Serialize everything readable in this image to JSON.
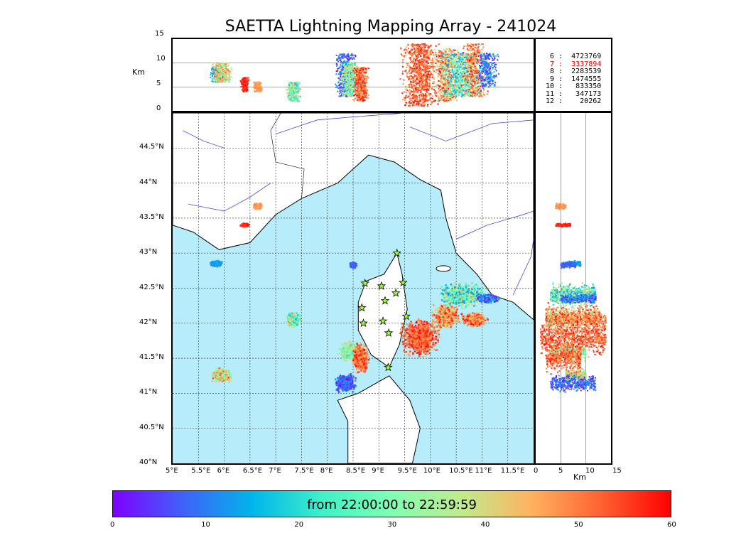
{
  "title": "SAETTA Lightning Mapping Array - 241024",
  "chart_data": {
    "type": "scatter",
    "title": "SAETTA Lightning Mapping Array - 241024",
    "map": {
      "lon_range": [
        5,
        12
      ],
      "lat_range": [
        40,
        45
      ],
      "x_ticks": [
        "5°E",
        "5.5°E",
        "6°E",
        "6.5°E",
        "7°E",
        "7.5°E",
        "8°E",
        "8.5°E",
        "9°E",
        "9.5°E",
        "10°E",
        "10.5°E",
        "11°E",
        "11.5°E"
      ],
      "y_ticks": [
        "40°N",
        "40.5°N",
        "41°N",
        "41.5°N",
        "42°N",
        "42.5°N",
        "43°N",
        "43.5°N",
        "44°N",
        "44.5°N"
      ],
      "grid": true
    },
    "altitude_top_panel": {
      "ylabel": "Km",
      "ylim": [
        0,
        15
      ],
      "y_ticks": [
        "0",
        "5",
        "10",
        "15"
      ]
    },
    "altitude_side_panel": {
      "xlabel": "Km",
      "xlim": [
        0,
        15
      ],
      "x_ticks": [
        "0",
        "5",
        "10",
        "15"
      ]
    },
    "station_counts": [
      {
        "stations": "6",
        "count": "4723769",
        "color": "#000000"
      },
      {
        "stations": "7",
        "count": "3337894",
        "color": "#ff0000"
      },
      {
        "stations": "8",
        "count": "2283539",
        "color": "#000000"
      },
      {
        "stations": "9",
        "count": "1474555",
        "color": "#000000"
      },
      {
        "stations": "10",
        "count": "833350",
        "color": "#000000"
      },
      {
        "stations": "11",
        "count": "347173",
        "color": "#000000"
      },
      {
        "stations": "12",
        "count": "20262",
        "color": "#000000"
      }
    ],
    "clusters": [
      {
        "lon": 5.85,
        "lat": 42.85,
        "rx": 0.13,
        "ry": 0.05,
        "t": [
          10,
          15
        ],
        "alt": [
          6,
          9
        ]
      },
      {
        "lon": 6.4,
        "lat": 43.4,
        "rx": 0.1,
        "ry": 0.03,
        "t": [
          55,
          60
        ],
        "alt": [
          4,
          7
        ]
      },
      {
        "lon": 6.65,
        "lat": 43.67,
        "rx": 0.1,
        "ry": 0.05,
        "t": [
          45,
          50
        ],
        "alt": [
          4,
          6
        ]
      },
      {
        "lon": 5.95,
        "lat": 41.25,
        "rx": 0.25,
        "ry": 0.12,
        "t": [
          25,
          55
        ],
        "alt": [
          6,
          10
        ]
      },
      {
        "lon": 7.35,
        "lat": 42.05,
        "rx": 0.18,
        "ry": 0.12,
        "t": [
          15,
          45
        ],
        "alt": [
          2,
          6
        ]
      },
      {
        "lon": 8.5,
        "lat": 42.83,
        "rx": 0.08,
        "ry": 0.05,
        "t": [
          5,
          10
        ],
        "alt": [
          5,
          8
        ]
      },
      {
        "lon": 8.35,
        "lat": 41.15,
        "rx": 0.25,
        "ry": 0.15,
        "t": [
          0,
          15
        ],
        "alt": [
          3,
          12
        ]
      },
      {
        "lon": 8.45,
        "lat": 41.6,
        "rx": 0.25,
        "ry": 0.15,
        "t": [
          20,
          45
        ],
        "alt": [
          3,
          10
        ]
      },
      {
        "lon": 8.65,
        "lat": 41.5,
        "rx": 0.18,
        "ry": 0.25,
        "t": [
          45,
          60
        ],
        "alt": [
          2,
          9
        ]
      },
      {
        "lon": 9.8,
        "lat": 41.8,
        "rx": 0.45,
        "ry": 0.3,
        "t": [
          45,
          60
        ],
        "alt": [
          1,
          14
        ]
      },
      {
        "lon": 10.3,
        "lat": 42.1,
        "rx": 0.3,
        "ry": 0.2,
        "t": [
          35,
          60
        ],
        "alt": [
          2,
          13
        ]
      },
      {
        "lon": 10.6,
        "lat": 42.4,
        "rx": 0.5,
        "ry": 0.2,
        "t": [
          10,
          45
        ],
        "alt": [
          3,
          12
        ]
      },
      {
        "lon": 10.85,
        "lat": 42.05,
        "rx": 0.3,
        "ry": 0.12,
        "t": [
          40,
          60
        ],
        "alt": [
          3,
          14
        ]
      },
      {
        "lon": 11.1,
        "lat": 42.35,
        "rx": 0.25,
        "ry": 0.08,
        "t": [
          0,
          20
        ],
        "alt": [
          5,
          12
        ]
      }
    ],
    "stations": [
      {
        "lon": 9.35,
        "lat": 43.0
      },
      {
        "lon": 8.73,
        "lat": 42.57
      },
      {
        "lon": 9.05,
        "lat": 42.53
      },
      {
        "lon": 9.47,
        "lat": 42.58
      },
      {
        "lon": 9.33,
        "lat": 42.43
      },
      {
        "lon": 9.12,
        "lat": 42.32
      },
      {
        "lon": 8.67,
        "lat": 42.22
      },
      {
        "lon": 9.53,
        "lat": 42.1
      },
      {
        "lon": 8.7,
        "lat": 42.0
      },
      {
        "lon": 9.08,
        "lat": 42.03
      },
      {
        "lon": 9.19,
        "lat": 41.86
      },
      {
        "lon": 9.18,
        "lat": 41.37
      }
    ],
    "colorbar": {
      "label": "from 22:00:00 to 22:59:59",
      "range": [
        0,
        60
      ],
      "ticks": [
        "0",
        "10",
        "20",
        "30",
        "40",
        "50",
        "60"
      ]
    }
  }
}
